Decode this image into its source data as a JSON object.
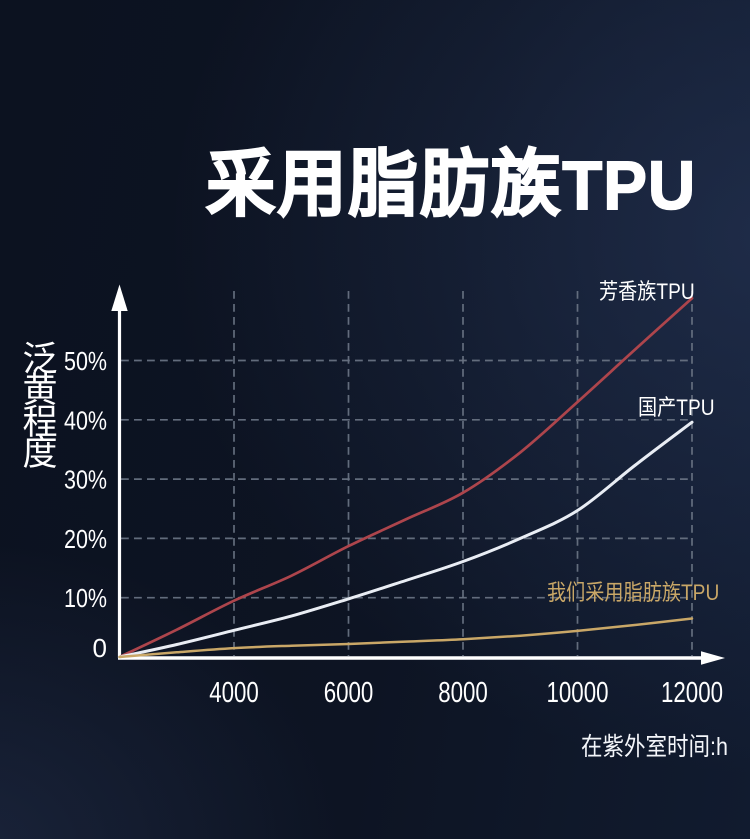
{
  "page": {
    "title": "采用脂肪族TPU",
    "title_parts": {
      "cjk": "采用脂肪族",
      "latin": "TPU"
    },
    "background_color": "#0d1423",
    "accent_colors": {
      "aromatic_line": "#ad454c",
      "domestic_line": "#e9edf4",
      "ours_line_and_label": "#c9a767",
      "axis_and_text": "#ffffff",
      "gridline": "#6a7484"
    }
  },
  "chart_data": {
    "type": "line",
    "title": "采用脂肪族TPU",
    "xlabel": "在紫外室时间:h",
    "ylabel": "泛黄程度",
    "xlim": [
      2000,
      12000
    ],
    "ylim": [
      0,
      62
    ],
    "grid": "dashed",
    "legend_position": "curve-end-labels",
    "x": [
      2000,
      3000,
      4000,
      5000,
      6000,
      7000,
      8000,
      9000,
      10000,
      11000,
      12000
    ],
    "series": [
      {
        "name": "芳香族TPU",
        "color": "#ad454c",
        "width": 2.7,
        "values": [
          0,
          4.6,
          9.5,
          13.7,
          18.7,
          23.2,
          27.7,
          34.5,
          43.0,
          51.8,
          60.5
        ]
      },
      {
        "name": "国产TPU",
        "color": "#e9edf4",
        "width": 3.0,
        "values": [
          0,
          2.1,
          4.5,
          6.9,
          9.8,
          12.9,
          16.1,
          20.0,
          24.7,
          32.3,
          39.6
        ]
      },
      {
        "name": "我们采用脂肪族TPU",
        "color": "#c9a767",
        "width": 2.5,
        "values": [
          0,
          0.8,
          1.5,
          1.9,
          2.2,
          2.6,
          3.0,
          3.6,
          4.4,
          5.4,
          6.5
        ]
      }
    ],
    "x_ticks": [
      {
        "label": "4000",
        "value": 4000
      },
      {
        "label": "6000",
        "value": 6000
      },
      {
        "label": "8000",
        "value": 8000
      },
      {
        "label": "10000",
        "value": 10000
      },
      {
        "label": "12000",
        "value": 12000
      }
    ],
    "y_ticks": [
      {
        "label": "50%",
        "value": 50
      },
      {
        "label": "40%",
        "value": 40
      },
      {
        "label": "30%",
        "value": 30
      },
      {
        "label": "20%",
        "value": 20
      },
      {
        "label": "10%",
        "value": 10
      },
      {
        "label": "0",
        "value": 0
      }
    ]
  }
}
